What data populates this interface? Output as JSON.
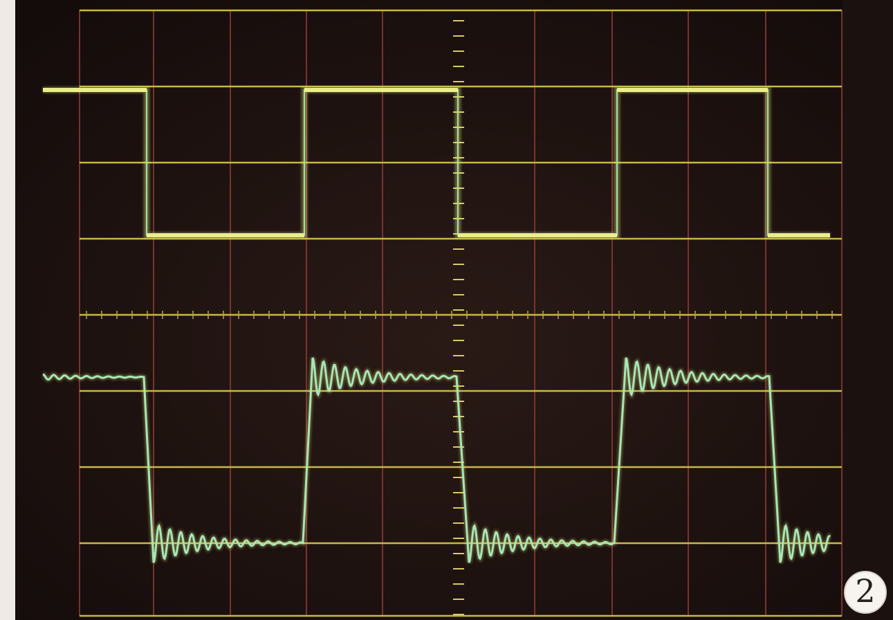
{
  "badge": {
    "label": "2"
  }
}
